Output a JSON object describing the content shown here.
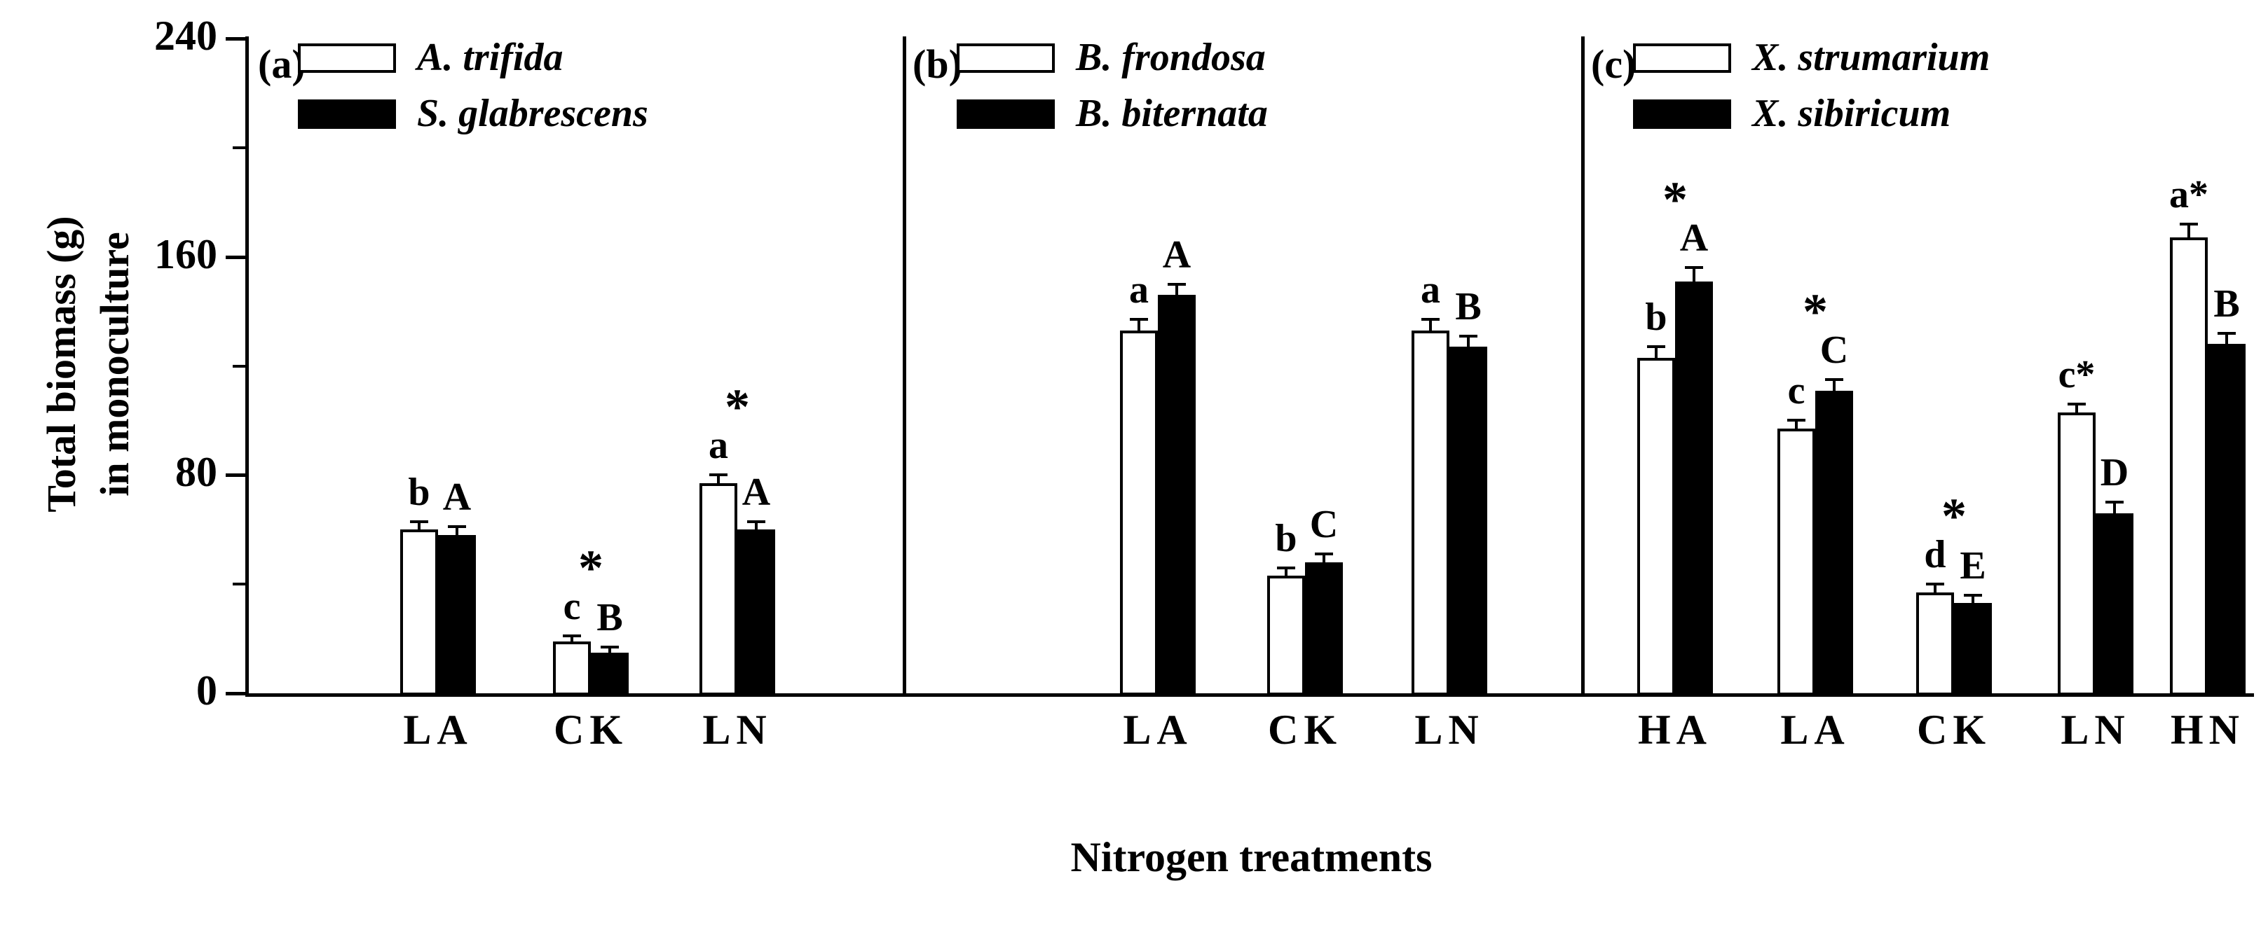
{
  "figure": {
    "ylabel_line1": "Total biomass (g)",
    "ylabel_line2": "in monoculture",
    "xlabel": "Nitrogen treatments",
    "yticks": [
      0,
      80,
      160,
      240
    ],
    "yticks_minor": [
      40,
      120,
      200
    ],
    "ylim": [
      0,
      240
    ],
    "bar_fill_open": "#ffffff",
    "bar_fill_solid": "#000000"
  },
  "chart_data": [
    {
      "type": "bar",
      "panel_label": "(a)",
      "categories": [
        "LA",
        "CK",
        "LN"
      ],
      "series": [
        {
          "name": "A. trifida",
          "fill": "#ffffff",
          "values": [
            60,
            19,
            77
          ],
          "errors": [
            3,
            2,
            3
          ],
          "labels": [
            "b",
            "c",
            "a"
          ]
        },
        {
          "name": "S. glabrescens",
          "fill": "#000000",
          "values": [
            58,
            15,
            60
          ],
          "errors": [
            3,
            2,
            3
          ],
          "labels": [
            "A",
            "B",
            "A"
          ]
        }
      ],
      "group_stars": [
        "",
        "*",
        "*"
      ]
    },
    {
      "type": "bar",
      "panel_label": "(b)",
      "categories": [
        "LA",
        "CK",
        "LN"
      ],
      "series": [
        {
          "name": "B. frondosa",
          "fill": "#ffffff",
          "values": [
            133,
            43,
            133
          ],
          "errors": [
            4,
            3,
            4
          ],
          "labels": [
            "a",
            "b",
            "a"
          ]
        },
        {
          "name": "B. biternata",
          "fill": "#000000",
          "values": [
            146,
            48,
            127
          ],
          "errors": [
            4,
            3,
            4
          ],
          "labels": [
            "A",
            "C",
            "B"
          ]
        }
      ],
      "group_stars": [
        "",
        "",
        ""
      ]
    },
    {
      "type": "bar",
      "panel_label": "(c)",
      "categories": [
        "HA",
        "LA",
        "CK",
        "LN",
        "HN"
      ],
      "series": [
        {
          "name": "X. strumarium",
          "fill": "#ffffff",
          "values": [
            123,
            97,
            37,
            103,
            167
          ],
          "errors": [
            4,
            3,
            3,
            3,
            5
          ],
          "labels": [
            "b",
            "c",
            "d",
            "c*",
            "a*"
          ]
        },
        {
          "name": "X. sibiricum",
          "fill": "#000000",
          "values": [
            151,
            111,
            33,
            66,
            128
          ],
          "errors": [
            5,
            4,
            3,
            4,
            4
          ],
          "labels": [
            "A",
            "C",
            "E",
            "D",
            "B"
          ]
        }
      ],
      "group_stars": [
        "*",
        "*",
        "*",
        "",
        ""
      ]
    }
  ]
}
